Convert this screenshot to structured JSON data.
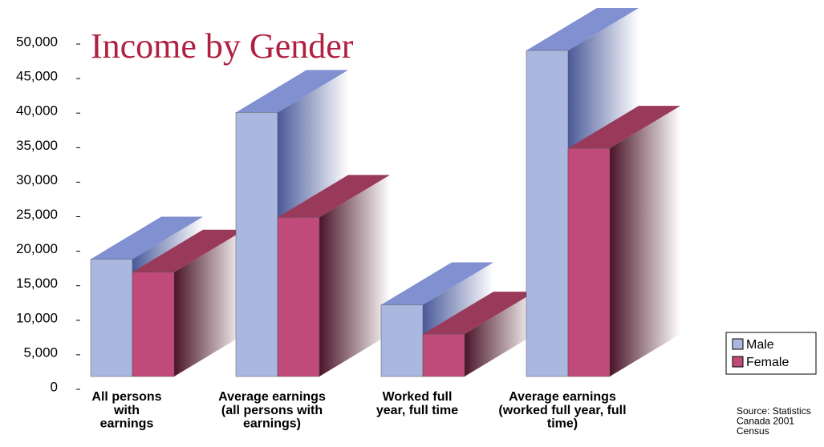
{
  "chart_data": {
    "type": "bar3d",
    "title": "Income by Gender",
    "categories": [
      "All persons\nwith\nearnings",
      "Average earnings\n(all persons with\nearnings)",
      "Worked full\nyear, full time",
      "Average earnings\n(worked full year, full\ntime)"
    ],
    "series": [
      {
        "name": "Male",
        "color": "#aab8e0",
        "values": [
          18000,
          40500,
          11000,
          50000
        ]
      },
      {
        "name": "Female",
        "color": "#c04a7a",
        "values": [
          16000,
          24400,
          6500,
          35000
        ]
      }
    ],
    "ylim": [
      0,
      50000
    ],
    "yticks": [
      0,
      {
        "value": 5000,
        "label": "5,000"
      },
      {
        "value": 10000,
        "label": "10,000"
      },
      {
        "value": 15000,
        "label": "15,000"
      },
      {
        "value": 20000,
        "label": "20,000"
      },
      {
        "value": 25000,
        "label": "25,000"
      },
      {
        "value": 30000,
        "label": "30,000"
      },
      {
        "value": 35000,
        "label": "35,000"
      },
      {
        "value": 40000,
        "label": "40,000"
      },
      {
        "value": 45000,
        "label": "45,000"
      },
      {
        "value": 50000,
        "label": "50,000"
      }
    ],
    "legend": "bottom-right",
    "annotations": [
      "Source: Statistics\nCanada 2001\nCensus"
    ]
  }
}
